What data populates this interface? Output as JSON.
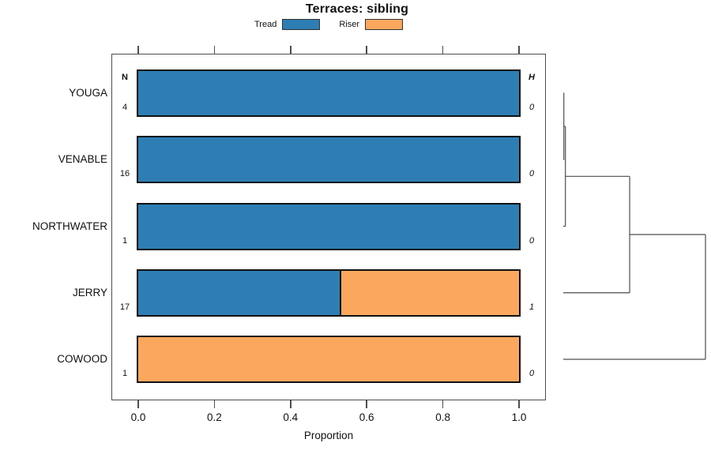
{
  "title": "Terraces: sibling",
  "legend": [
    {
      "label": "Tread",
      "color": "#2E7EB4"
    },
    {
      "label": "Riser",
      "color": "#FBA85E"
    }
  ],
  "chart_data": {
    "type": "bar",
    "orientation": "horizontal",
    "stacked": true,
    "title": "Terraces: sibling",
    "xlabel": "Proportion",
    "xlim": [
      0,
      1
    ],
    "x_ticks": [
      "0.0",
      "0.2",
      "0.4",
      "0.6",
      "0.8",
      "1.0"
    ],
    "grid": false,
    "legend_position": "top-center",
    "categories": [
      "YOUGA",
      "VENABLE",
      "NORTHWATER",
      "JERRY",
      "COWOOD"
    ],
    "series": [
      {
        "name": "Tread",
        "color": "#2E7EB4",
        "values": [
          1.0,
          1.0,
          1.0,
          0.53,
          0.0
        ]
      },
      {
        "name": "Riser",
        "color": "#FBA85E",
        "values": [
          0.0,
          0.0,
          0.0,
          0.47,
          1.0
        ]
      }
    ],
    "n_column": {
      "header": "N",
      "values": [
        "4",
        "16",
        "1",
        "17",
        "1"
      ]
    },
    "h_column": {
      "header": "H",
      "values": [
        "0",
        "0",
        "0",
        "1",
        "0"
      ]
    },
    "dendrogram": {
      "side": "right",
      "leaves": [
        "YOUGA",
        "VENABLE",
        "NORTHWATER",
        "JERRY",
        "COWOOD"
      ],
      "merges": [
        {
          "a": 0,
          "b": 1,
          "height": 0.004
        },
        {
          "a": 5,
          "b": 2,
          "height": 0.015
        },
        {
          "a": 6,
          "b": 3,
          "height": 0.467
        },
        {
          "a": 7,
          "b": 4,
          "height": 1.0
        }
      ]
    }
  }
}
